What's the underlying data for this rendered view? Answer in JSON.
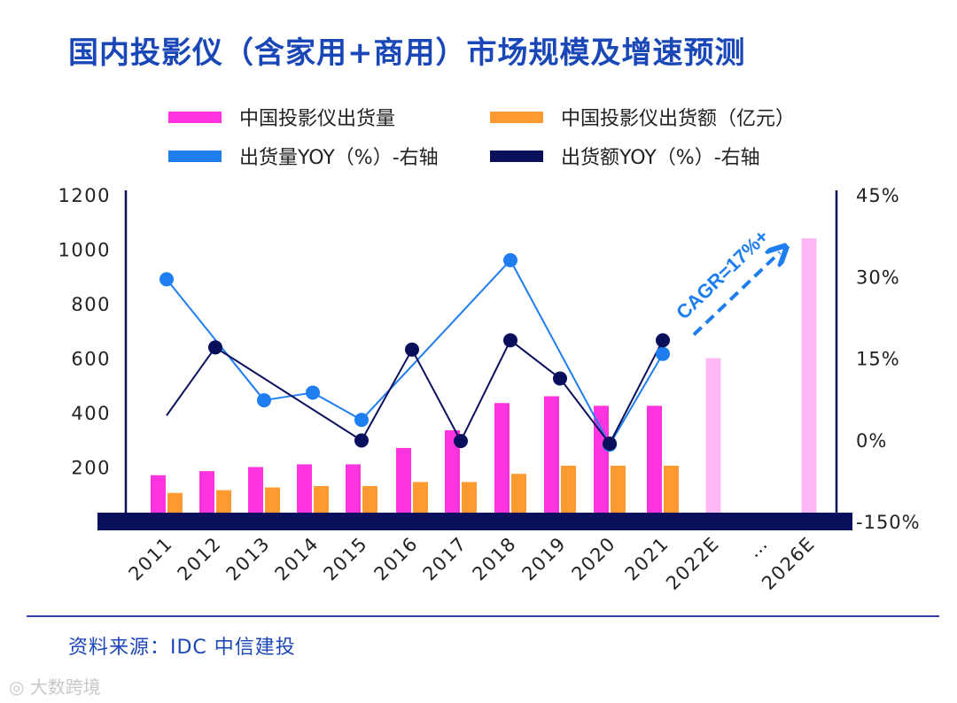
{
  "title": "国内投影仪（含家用+商用）市场规模及增速预测",
  "source": "资料来源：IDC 中信建投",
  "watermark": "大数跨境",
  "colors": {
    "title": "#1a47b8",
    "shipments": "#ff33e0",
    "revenue": "#ff9a30",
    "shipments_yoy": "#1e7ef0",
    "revenue_yoy": "#0a0f5c",
    "forecast": "#ffb8f4",
    "axis": "#0a0f5c"
  },
  "chart_data": {
    "type": "bar",
    "categories": [
      "2011",
      "2012",
      "2013",
      "2014",
      "2015",
      "2016",
      "2017",
      "2018",
      "2019",
      "2020",
      "2021",
      "2022E",
      "…",
      "2026E"
    ],
    "left_ticks": [
      "1200",
      "1000",
      "800",
      "600",
      "400",
      "200"
    ],
    "right_ticks": [
      "45%",
      "30%",
      "15%",
      "0%",
      "-150%"
    ],
    "ylim_left": [
      0,
      1200
    ],
    "annotation": "CAGR=17%+",
    "series": [
      {
        "name": "中国投影仪出货量",
        "type": "bar",
        "values": [
          170,
          185,
          200,
          210,
          210,
          270,
          335,
          435,
          460,
          425,
          425,
          600,
          null,
          1040
        ]
      },
      {
        "name": "中国投影仪出货额（亿元）",
        "type": "bar",
        "values": [
          105,
          115,
          125,
          130,
          130,
          145,
          145,
          175,
          205,
          205,
          205,
          null,
          null,
          null
        ]
      },
      {
        "name": "出货量YOY（%）-右轴",
        "type": "line",
        "values": [
          29.5,
          null,
          7.3,
          8.7,
          3.7,
          null,
          null,
          33,
          null,
          -8.5,
          15.8,
          null,
          null,
          null
        ]
      },
      {
        "name": "出货额YOY（%）-右轴",
        "type": "line",
        "values": [
          4.5,
          17,
          null,
          null,
          -0.8,
          16.6,
          -1.8,
          18.3,
          11.3,
          -6.5,
          18.3,
          null,
          null,
          null
        ]
      }
    ]
  }
}
